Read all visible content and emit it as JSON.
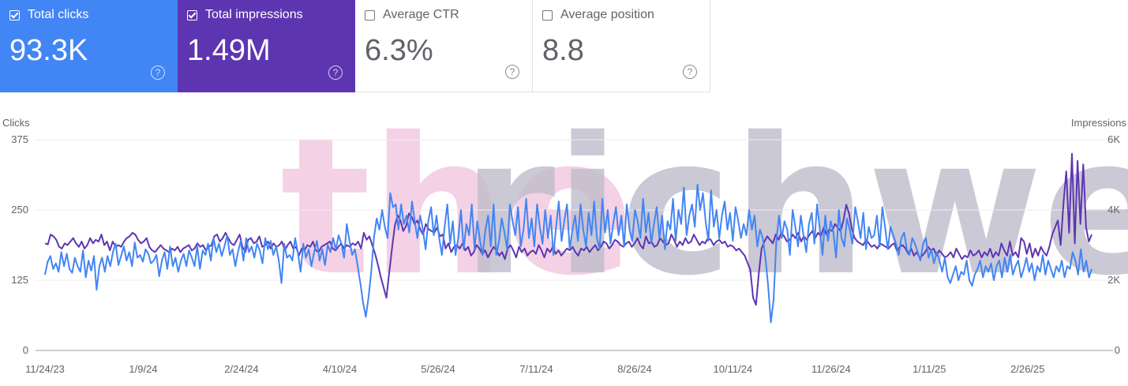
{
  "metrics": [
    {
      "label": "Total clicks",
      "value": "93.3K",
      "checked": true,
      "color": "#4285f4",
      "help": "?"
    },
    {
      "label": "Total impressions",
      "value": "1.49M",
      "checked": true,
      "color": "#5e35b1",
      "help": "?"
    },
    {
      "label": "Average CTR",
      "value": "6.3%",
      "checked": false,
      "color": "#ffffff",
      "help": "?"
    },
    {
      "label": "Average position",
      "value": "8.8",
      "checked": false,
      "color": "#ffffff",
      "help": "?"
    }
  ],
  "watermark": "therichweb",
  "chart_data": {
    "type": "line",
    "x_ticks": [
      "11/24/23",
      "1/9/24",
      "2/24/24",
      "4/10/24",
      "5/26/24",
      "7/11/24",
      "8/26/24",
      "10/11/24",
      "11/26/24",
      "1/11/25",
      "2/26/25"
    ],
    "x_range": [
      "11/24/23",
      "3/28/25"
    ],
    "left_axis": {
      "label": "Clicks",
      "ticks": [
        "375",
        "250",
        "125",
        "0"
      ],
      "range": [
        0,
        375
      ]
    },
    "right_axis": {
      "label": "Impressions",
      "ticks": [
        "6K",
        "4K",
        "2K",
        "0"
      ],
      "range": [
        0,
        6000
      ]
    },
    "grid": true,
    "series": [
      {
        "name": "Clicks",
        "axis": "left",
        "color": "#4285f4",
        "values": [
          135,
          158,
          168,
          145,
          155,
          140,
          175,
          150,
          172,
          145,
          138,
          165,
          150,
          140,
          178,
          130,
          160,
          142,
          168,
          108,
          150,
          165,
          140,
          168,
          150,
          175,
          190,
          152,
          168,
          185,
          160,
          175,
          150,
          192,
          165,
          170,
          158,
          180,
          172,
          155,
          160,
          170,
          132,
          160,
          175,
          145,
          185,
          150,
          165,
          140,
          160,
          172,
          150,
          178,
          165,
          150,
          185,
          145,
          178,
          170,
          190,
          160,
          200,
          175,
          190,
          168,
          185,
          205,
          170,
          180,
          150,
          175,
          195,
          160,
          200,
          175,
          185,
          165,
          190,
          178,
          155,
          200,
          180,
          195,
          170,
          185,
          160,
          120,
          190,
          165,
          170,
          160,
          200,
          175,
          140,
          190,
          165,
          180,
          150,
          175,
          195,
          160,
          180,
          152,
          188,
          175,
          200,
          180,
          205,
          190,
          165,
          225,
          195,
          170,
          180,
          150,
          120,
          85,
          60,
          95,
          140,
          200,
          235,
          215,
          250,
          220,
          200,
          280,
          255,
          260,
          215,
          260,
          225,
          240,
          210,
          265,
          230,
          200,
          240,
          215,
          180,
          230,
          255,
          205,
          240,
          200,
          170,
          220,
          260,
          190,
          230,
          170,
          200,
          250,
          180,
          225,
          205,
          260,
          180,
          230,
          195,
          170,
          215,
          240,
          185,
          260,
          170,
          195,
          235,
          210,
          180,
          260,
          230,
          205,
          255,
          185,
          215,
          270,
          200,
          235,
          185,
          260,
          220,
          190,
          250,
          200,
          240,
          170,
          220,
          265,
          195,
          230,
          260,
          180,
          215,
          240,
          195,
          260,
          215,
          185,
          245,
          205,
          265,
          200,
          180,
          270,
          210,
          250,
          190,
          225,
          255,
          205,
          240,
          185,
          260,
          215,
          195,
          250,
          230,
          200,
          270,
          210,
          245,
          190,
          225,
          255,
          200,
          240,
          180,
          230,
          215,
          270,
          195,
          250,
          225,
          290,
          205,
          240,
          260,
          220,
          295,
          250,
          280,
          230,
          195,
          285,
          220,
          250,
          200,
          240,
          265,
          215,
          245,
          195,
          255,
          230,
          200,
          225,
          205,
          250,
          215,
          240,
          185,
          215,
          200,
          165,
          115,
          50,
          90,
          195,
          240,
          200,
          230,
          215,
          170,
          250,
          220,
          185,
          240,
          205,
          175,
          225,
          245,
          190,
          260,
          215,
          170,
          240,
          195,
          230,
          210,
          165,
          250,
          200,
          185,
          235,
          215,
          190,
          255,
          230,
          200,
          245,
          180,
          220,
          200,
          205,
          240,
          185,
          255,
          220,
          180,
          220,
          205,
          190,
          170,
          200,
          210,
          180,
          170,
          200,
          190,
          175,
          160,
          190,
          200,
          165,
          180,
          155,
          175,
          160,
          140,
          165,
          130,
          120,
          135,
          150,
          125,
          140,
          135,
          160,
          125,
          115,
          135,
          145,
          160,
          130,
          150,
          140,
          155,
          125,
          150,
          160,
          130,
          165,
          140,
          170,
          135,
          150,
          160,
          130,
          145,
          165,
          140,
          155,
          125,
          150,
          140,
          170,
          135,
          160,
          145,
          130,
          150,
          140,
          160,
          130,
          150,
          145,
          175,
          160,
          135,
          180,
          140,
          160,
          130,
          145
        ]
      },
      {
        "name": "Impressions",
        "axis": "right",
        "values": [
          3050,
          3020,
          3300,
          3250,
          3150,
          2950,
          2900,
          3050,
          3000,
          3100,
          3200,
          3050,
          2950,
          3100,
          2900,
          3000,
          3200,
          3050,
          3150,
          3100,
          3300,
          3000,
          3100,
          2850,
          3100,
          2950,
          3000,
          2950,
          3100,
          3200,
          3250,
          3350,
          3300,
          3150,
          3050,
          3100,
          3200,
          2950,
          2850,
          2800,
          2900,
          3000,
          2900,
          2850,
          2800,
          2900,
          2850,
          2950,
          2800,
          2900,
          2950,
          3000,
          2850,
          2900,
          3050,
          2950,
          3000,
          2850,
          2950,
          3000,
          3250,
          3300,
          3100,
          3200,
          3350,
          3200,
          3050,
          3000,
          3150,
          3300,
          2950,
          2800,
          3150,
          3200,
          3050,
          3100,
          3250,
          2950,
          3000,
          3100,
          2900,
          3050,
          2950,
          3000,
          3100,
          2850,
          3000,
          3100,
          2900,
          2950,
          2700,
          2900,
          2850,
          3000,
          2950,
          3100,
          2850,
          2800,
          2950,
          3000,
          3050,
          3100,
          2900,
          2850,
          2950,
          3050,
          2900,
          3000,
          2950,
          3050,
          3000,
          3100,
          2900,
          3350,
          3150,
          3250,
          3000,
          2750,
          2450,
          2100,
          1800,
          1500,
          2200,
          2900,
          3550,
          3850,
          3700,
          3400,
          3550,
          3900,
          3800,
          3600,
          3700,
          3450,
          3300,
          3600,
          3450,
          3400,
          3350,
          3500,
          3250,
          3300,
          2900,
          3050,
          2800,
          2950,
          3000,
          2900,
          3050,
          2850,
          2950,
          2700,
          2800,
          3000,
          2900,
          2750,
          2850,
          2650,
          2800,
          2950,
          2850,
          2700,
          2800,
          2600,
          2900,
          3000,
          2850,
          2650,
          2950,
          2800,
          2900,
          2700,
          2800,
          2850,
          2750,
          3000,
          2850,
          2650,
          2900,
          2800,
          2950,
          2750,
          2850,
          2700,
          2800,
          2900,
          2850,
          2950,
          2800,
          2700,
          2900,
          2850,
          2950,
          2800,
          2900,
          3000,
          2850,
          2950,
          3100,
          3050,
          2900,
          3000,
          3150,
          3100,
          3000,
          2950,
          3050,
          3100,
          2950,
          3050,
          3200,
          3000,
          2900,
          3250,
          3050,
          3100,
          2950,
          3000,
          3200,
          3100,
          3000,
          3050,
          3300,
          3150,
          2950,
          3100,
          3000,
          3200,
          3050,
          3100,
          3300,
          3150,
          3000,
          3100,
          3050,
          3200,
          3150,
          3000,
          3100,
          3150,
          3050,
          3100,
          2950,
          3000,
          2950,
          2850,
          2900,
          2800,
          2700,
          2500,
          2300,
          1500,
          1300,
          2200,
          2900,
          3100,
          3250,
          3150,
          3050,
          3300,
          3150,
          3350,
          3250,
          3100,
          3150,
          3300,
          3200,
          3350,
          3100,
          3250,
          3150,
          3300,
          3400,
          3200,
          3350,
          3250,
          3500,
          3300,
          3450,
          3400,
          3600,
          3500,
          3400,
          3700,
          4150,
          3900,
          3450,
          3200,
          3100,
          3050,
          3000,
          3150,
          3050,
          2950,
          3000,
          2900,
          3050,
          3000,
          2950,
          2900,
          3000,
          3050,
          2850,
          2950,
          3000,
          2900,
          2750,
          2900,
          2700,
          2800,
          2650,
          2700,
          2800,
          2950,
          2850,
          2900,
          2700,
          2850,
          2750,
          2650,
          2700,
          2800,
          2650,
          2900,
          2750,
          2600,
          2700,
          2650,
          2850,
          2700,
          2750,
          2850,
          2650,
          2800,
          2700,
          2900,
          2650,
          2800,
          2700,
          3050,
          2850,
          2700,
          3100,
          2700,
          2800,
          2650,
          3200,
          3100,
          2750,
          3050,
          2650,
          2900,
          2700,
          2950,
          2800,
          2700,
          2950,
          3300,
          3500,
          3700,
          3000,
          4200,
          5100,
          3350,
          5600,
          3050,
          5400,
          3600,
          5300,
          3500,
          3100,
          3300
        ],
        "color": "#5e35b1"
      }
    ]
  }
}
